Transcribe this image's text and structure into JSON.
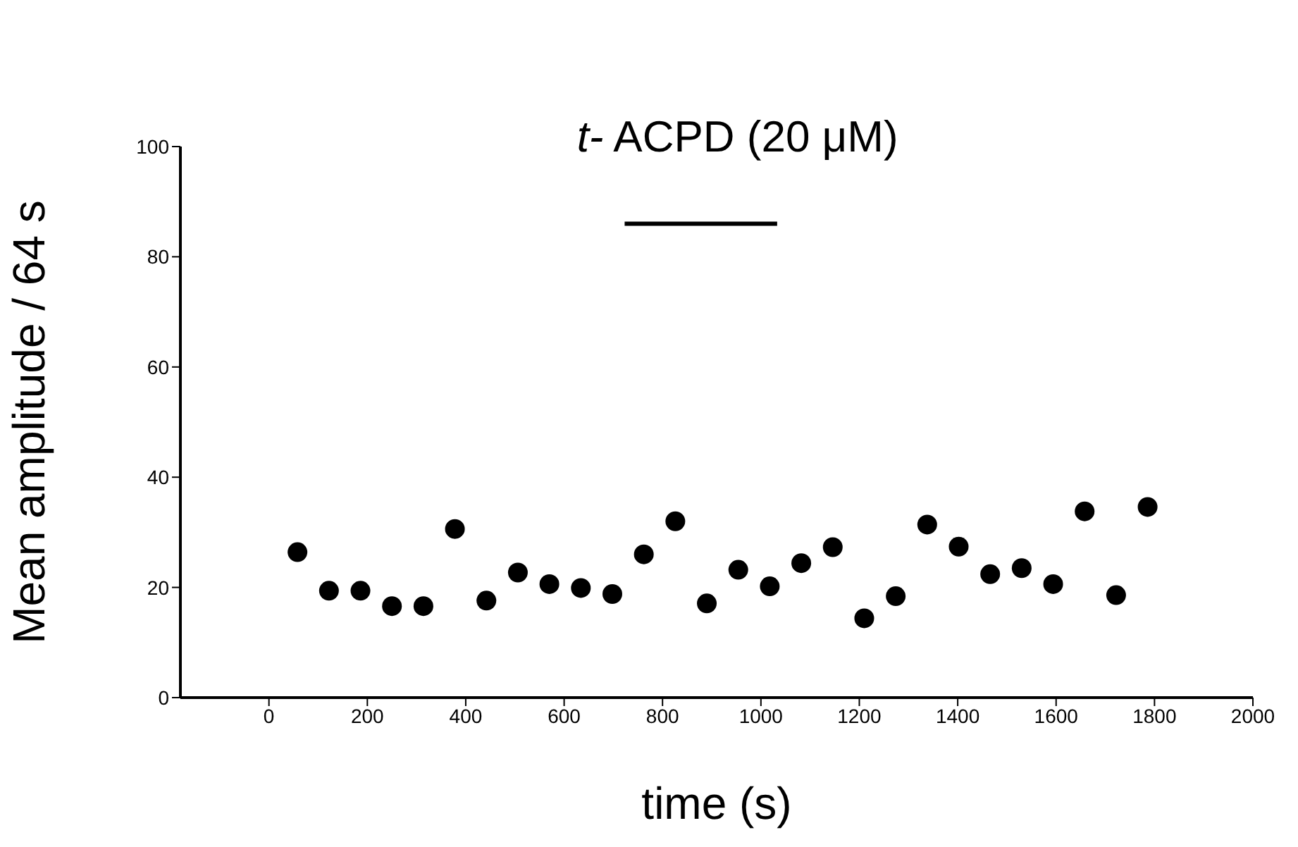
{
  "chart_data": {
    "type": "scatter",
    "xlabel": "time (s)",
    "ylabel": "Mean amplitude / 64 s",
    "x": [
      58,
      122,
      186,
      250,
      314,
      378,
      442,
      506,
      570,
      634,
      698,
      762,
      826,
      890,
      954,
      1018,
      1082,
      1146,
      1210,
      1274,
      1338,
      1402,
      1466,
      1530,
      1594,
      1658,
      1722,
      1786
    ],
    "series": [
      {
        "color": "#000000",
        "marker": "circle",
        "values": [
          26.4,
          19.4,
          19.4,
          16.6,
          16.6,
          30.6,
          17.6,
          22.7,
          20.6,
          19.9,
          18.8,
          26,
          32,
          17.1,
          23.2,
          20.2,
          24.4,
          27.3,
          14.4,
          18.4,
          31.4,
          27.4,
          22.4,
          23.5,
          20.6,
          33.8,
          18.6,
          34.6
        ]
      },
      {
        "type": "line",
        "color": "#000000",
        "marker": "none",
        "x": [
          723,
          1033
        ],
        "values": [
          86,
          86
        ]
      }
    ],
    "annotations": [
      "t- ACPD (20 μM)"
    ],
    "xlim": [
      -180,
      2000
    ],
    "xticks": [
      0,
      200,
      400,
      600,
      800,
      1000,
      1200,
      1400,
      1600,
      1800,
      2000
    ],
    "ylim": [
      0,
      100
    ],
    "yticks": [
      0,
      20,
      40,
      60,
      80,
      100
    ],
    "grid": false
  }
}
